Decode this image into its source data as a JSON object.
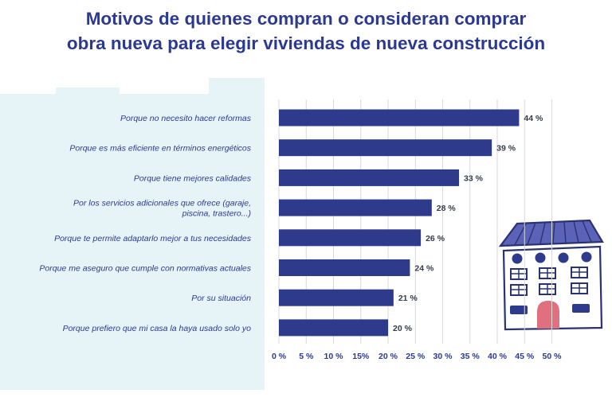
{
  "title_line1": "Motivos de quienes compran o consideran comprar",
  "title_line2": "obra nueva para elegir viviendas de nueva construcción",
  "colors": {
    "title": "#2b3990",
    "bar": "#2e3a8c",
    "background_shape": "#e6f3f7",
    "grid": "#d9d9d9"
  },
  "chart_data": {
    "type": "bar",
    "orientation": "horizontal",
    "categories": [
      "Porque no necesito hacer reformas",
      "Porque es más eficiente en términos energéticos",
      "Porque tiene mejores calidades",
      "Por los servicios adicionales que ofrece (garaje, piscina, trastero...)",
      "Porque te permite adaptarlo mejor a tus necesidades",
      "Porque me aseguro que cumple con normativas actuales",
      "Por su situación",
      "Porque prefiero que mi casa la haya usado solo yo"
    ],
    "category_lines": [
      [
        "Porque no necesito hacer reformas"
      ],
      [
        "Porque es más eficiente en términos energéticos"
      ],
      [
        "Porque tiene mejores calidades"
      ],
      [
        "Por los servicios adicionales que ofrece (garaje,",
        "piscina, trastero...)"
      ],
      [
        "Porque te permite adaptarlo mejor a tus necesidades"
      ],
      [
        "Porque me aseguro que cumple con normativas actuales"
      ],
      [
        "Por su situación"
      ],
      [
        "Porque prefiero que mi casa la haya usado solo yo"
      ]
    ],
    "values": [
      44,
      39,
      33,
      28,
      26,
      24,
      21,
      20
    ],
    "value_labels": [
      "44 %",
      "39  %",
      "33 %",
      "28 %",
      "26 %",
      "24 %",
      "21 %",
      "20 %"
    ],
    "xticks": [
      0,
      5,
      10,
      15,
      20,
      25,
      30,
      35,
      40,
      45,
      50
    ],
    "xtick_labels": [
      "0 %",
      "5 %",
      "10 %",
      "15%",
      "20 %",
      "25 %",
      "30 %",
      "35 %",
      "40 %",
      "45 %",
      "50 %"
    ],
    "xlim": [
      0,
      50
    ],
    "grid": true
  }
}
